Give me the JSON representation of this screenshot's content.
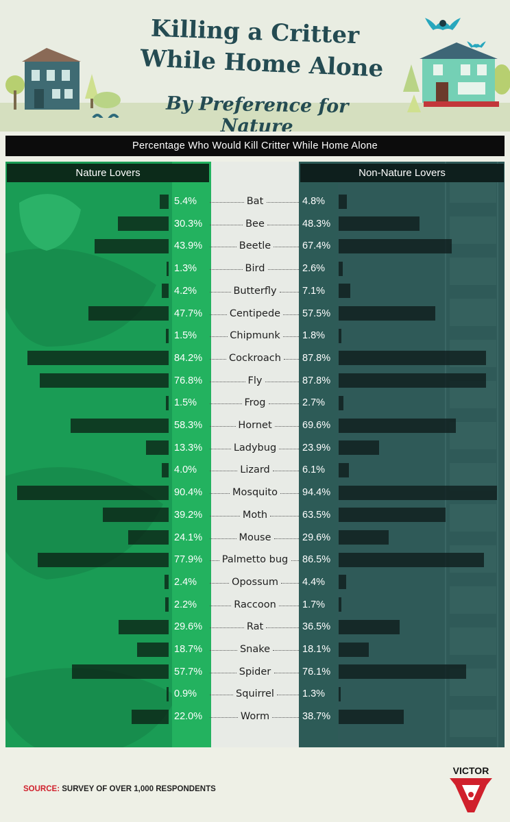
{
  "header": {
    "title_line1": "Killing a Critter",
    "title_line2": "While Home Alone",
    "subtitle": "By Preference for Nature"
  },
  "chart_data": {
    "type": "bar",
    "title": "Percentage Who Would Kill Critter While Home Alone",
    "orientation": "horizontal-butterfly",
    "categories": [
      "Bat",
      "Bee",
      "Beetle",
      "Bird",
      "Butterfly",
      "Centipede",
      "Chipmunk",
      "Cockroach",
      "Fly",
      "Frog",
      "Hornet",
      "Ladybug",
      "Lizard",
      "Mosquito",
      "Moth",
      "Mouse",
      "Palmetto bug",
      "Opossum",
      "Raccoon",
      "Rat",
      "Snake",
      "Spider",
      "Squirrel",
      "Worm"
    ],
    "series": [
      {
        "name": "Nature Lovers",
        "values": [
          5.4,
          30.3,
          43.9,
          1.3,
          4.2,
          47.7,
          1.5,
          84.2,
          76.8,
          1.5,
          58.3,
          13.3,
          4.0,
          90.4,
          39.2,
          24.1,
          77.9,
          2.4,
          2.2,
          29.6,
          18.7,
          57.7,
          0.9,
          22.0
        ],
        "labels": [
          "5.4%",
          "30.3%",
          "43.9%",
          "1.3%",
          "4.2%",
          "47.7%",
          "1.5%",
          "84.2%",
          "76.8%",
          "1.5%",
          "58.3%",
          "13.3%",
          "4.0%",
          "90.4%",
          "39.2%",
          "24.1%",
          "77.9%",
          "2.4%",
          "2.2%",
          "29.6%",
          "18.7%",
          "57.7%",
          "0.9%",
          "22.0%"
        ]
      },
      {
        "name": "Non-Nature Lovers",
        "values": [
          4.8,
          48.3,
          67.4,
          2.6,
          7.1,
          57.5,
          1.8,
          87.8,
          87.8,
          2.7,
          69.6,
          23.9,
          6.1,
          94.4,
          63.5,
          29.6,
          86.5,
          4.4,
          1.7,
          36.5,
          18.1,
          76.1,
          1.3,
          38.7
        ],
        "labels": [
          "4.8%",
          "48.3%",
          "67.4%",
          "2.6%",
          "7.1%",
          "57.5%",
          "1.8%",
          "87.8%",
          "87.8%",
          "2.7%",
          "69.6%",
          "23.9%",
          "6.1%",
          "94.4%",
          "63.5%",
          "29.6%",
          "86.5%",
          "4.4%",
          "1.7%",
          "36.5%",
          "18.1%",
          "76.1%",
          "1.3%",
          "38.7%"
        ]
      }
    ],
    "xlim": [
      0,
      100
    ],
    "colors": {
      "nature": "#1a9c55",
      "non_nature": "#2f5a58",
      "bar": "#0c1a12"
    }
  },
  "footer": {
    "source_label": "SOURCE:",
    "source_text": "SURVEY OF OVER 1,000 RESPONDENTS",
    "logo_text": "VICTOR"
  }
}
